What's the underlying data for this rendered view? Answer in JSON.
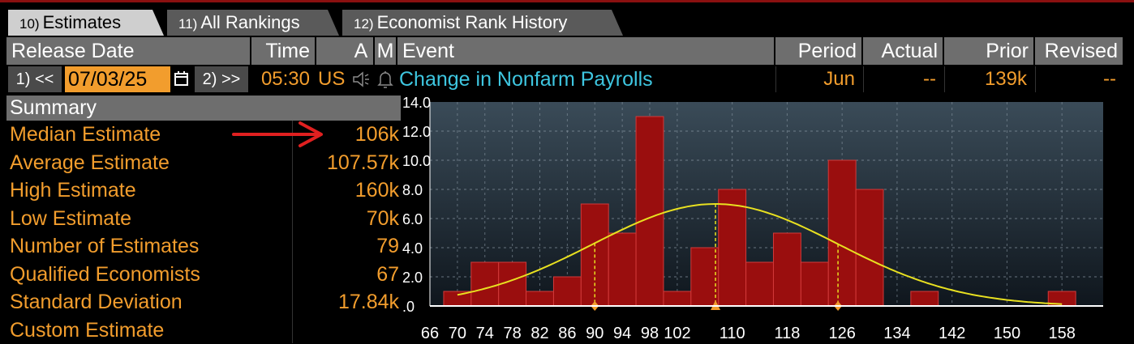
{
  "tabs": [
    {
      "num": "10)",
      "label": "Estimates"
    },
    {
      "num": "11)",
      "label": "All Rankings"
    },
    {
      "num": "12)",
      "label": "Economist Rank History"
    }
  ],
  "header": {
    "release_date": "Release Date",
    "time": "Time",
    "a": "A",
    "m": "M",
    "event": "Event",
    "period": "Period",
    "actual": "Actual",
    "prior": "Prior",
    "revised": "Revised"
  },
  "release": {
    "prev_label": "1) <<",
    "date": "07/03/25",
    "next_label": "2) >>",
    "time": "05:30",
    "country": "US",
    "event": "Change in Nonfarm Payrolls",
    "period": "Jun",
    "actual": "--",
    "prior": "139k",
    "revised": "--"
  },
  "summary": {
    "title": "Summary",
    "rows": [
      {
        "label": "Median Estimate",
        "value": "106k"
      },
      {
        "label": "Average Estimate",
        "value": "107.57k"
      },
      {
        "label": "High Estimate",
        "value": "160k"
      },
      {
        "label": "Low Estimate",
        "value": "70k"
      },
      {
        "label": "Number of Estimates",
        "value": "79"
      },
      {
        "label": "Qualified Economists",
        "value": "67"
      },
      {
        "label": "Standard Deviation",
        "value": "17.84k"
      },
      {
        "label": "Custom Estimate",
        "value": ""
      }
    ]
  },
  "colors": {
    "accent": "#f29d2d",
    "event_link": "#3ec6e0",
    "bar": "#9a0e0e",
    "curve": "#e8e020",
    "arrow": "#e02020"
  },
  "chart_data": {
    "type": "bar",
    "x_ticks": [
      "66",
      "70",
      "74",
      "78",
      "82",
      "86",
      "90",
      "94",
      "98",
      "102",
      "110",
      "118",
      "126",
      "134",
      "142",
      "150",
      "158"
    ],
    "y_ticks": [
      "14.0",
      "12.0",
      "10.0",
      "8.0",
      "6.0",
      "4.0",
      "2.0",
      ".0"
    ],
    "ylim": [
      0,
      14
    ],
    "bars": [
      {
        "bin": "70",
        "count": 1
      },
      {
        "bin": "74",
        "count": 3
      },
      {
        "bin": "78",
        "count": 3
      },
      {
        "bin": "82",
        "count": 1
      },
      {
        "bin": "86",
        "count": 2
      },
      {
        "bin": "90",
        "count": 7
      },
      {
        "bin": "94",
        "count": 5
      },
      {
        "bin": "98",
        "count": 13
      },
      {
        "bin": "102",
        "count": 1
      },
      {
        "bin": "106",
        "count": 4
      },
      {
        "bin": "110",
        "count": 8
      },
      {
        "bin": "114",
        "count": 3
      },
      {
        "bin": "118",
        "count": 5
      },
      {
        "bin": "122",
        "count": 3
      },
      {
        "bin": "126",
        "count": 10
      },
      {
        "bin": "130",
        "count": 8
      },
      {
        "bin": "138",
        "count": 1
      },
      {
        "bin": "158",
        "count": 1
      }
    ],
    "normal_curve": {
      "mean": 107.57,
      "std": 17.84,
      "peak": 7
    },
    "markers": [
      {
        "x": 90,
        "shape": "diamond"
      },
      {
        "x": 107.57,
        "shape": "triangle"
      },
      {
        "x": 125.4,
        "shape": "diamond"
      }
    ],
    "grid": true
  }
}
